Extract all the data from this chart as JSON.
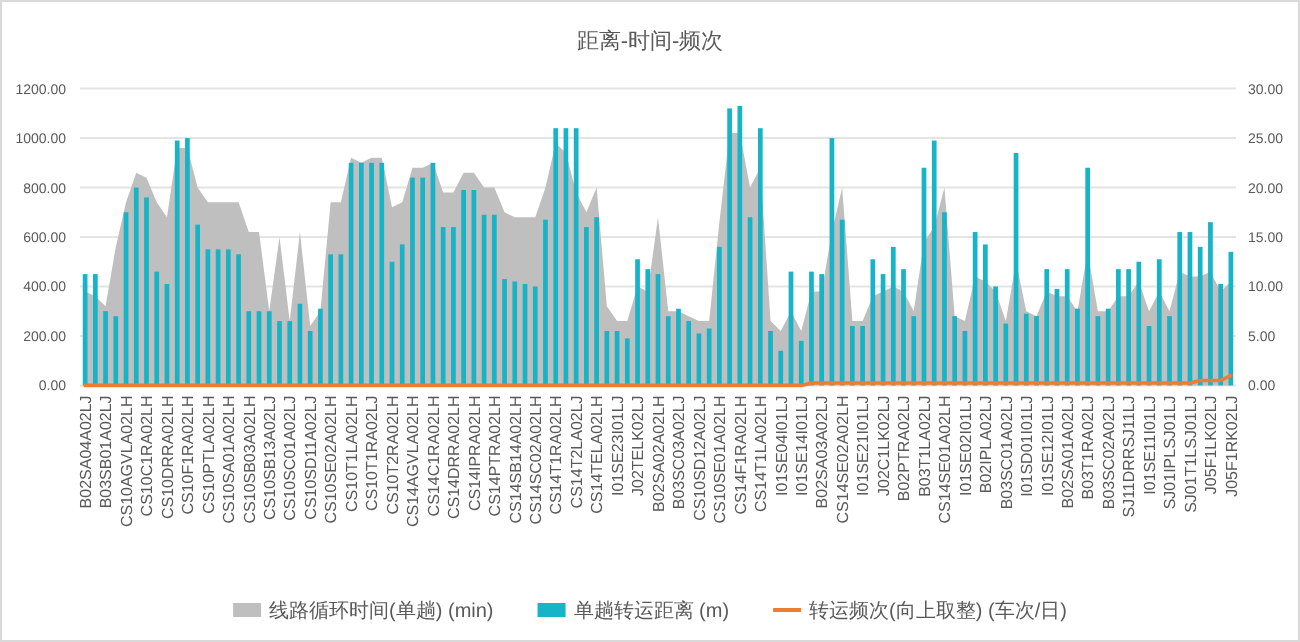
{
  "chart_data": {
    "type": "bar",
    "title": "距离-时间-频次",
    "categories": [
      "B02SA04A02LJ",
      null,
      "B03SB01A02LJ",
      null,
      "CS10AGVLA02LH",
      null,
      "CS10C1RA02LH",
      null,
      "CS10DRRA02LH",
      null,
      "CS10F1RA02LH",
      null,
      "CS10PTLA02LH",
      null,
      "CS10SA01A02LH",
      null,
      "CS10SB03A02LH",
      null,
      "CS10SB13A02LJ",
      null,
      "CS10SC01A02LJ",
      null,
      "CS10SD11A02LJ",
      null,
      "CS10SE02A02LH",
      null,
      "CS10T1LA02LH",
      null,
      "CS10T1RA02LJ",
      null,
      "CS10T2RA02LH",
      null,
      "CS14AGVLA02LH",
      null,
      "CS14C1RA02LH",
      null,
      "CS14DRRA02LH",
      null,
      "CS14IPRA02LH",
      null,
      "CS14PTRA02LH",
      null,
      "CS14SB14A02LH",
      null,
      "CS14SC02A02LH",
      null,
      "CS14T1RA02LH",
      null,
      "CS14T2LA02LJ",
      null,
      "CS14TELA02LH",
      null,
      "I01SE23I01LJ",
      null,
      "J02TELK02LJ",
      null,
      "B02SA02A02LH",
      null,
      "B03SC03A02LJ",
      null,
      "CS10SD12A02LJ",
      null,
      "CS10SE01A02LH",
      null,
      "CS14F1RA02LH",
      null,
      "CS14T1LA02LH",
      null,
      "I01SE04I01LJ",
      null,
      "I01SE14I01LJ",
      null,
      "B02SA03A02LJ",
      null,
      "CS14SE02A02LH",
      null,
      "I01SE21I01LJ",
      null,
      "J02C1LK02LJ",
      null,
      "B02PTRA02LJ",
      null,
      "B03T1LA02LJ",
      null,
      "CS14SE01A02LH",
      null,
      "I01SE02I01LJ",
      null,
      "B02IPLA02LJ",
      null,
      "B03SC01A02LJ",
      null,
      "I01SD01I01LJ",
      null,
      "I01SE12I01LJ",
      null,
      "B02SA01A02LJ",
      null,
      "B03T1RA02LJ",
      null,
      "B03SC02A02LJ",
      null,
      "SJ11DRRSJ11LJ",
      null,
      "I01SE11I01LJ",
      null,
      "SJ01IPLSJ01LJ",
      null,
      "SJ01T1LSJ01LJ",
      null,
      "J05F1LK02LJ",
      null,
      "J05F1RK02LJ"
    ],
    "series": [
      {
        "name": "线路循环时间(单趟) (min)",
        "type": "area",
        "axis": "y2",
        "color": "#bfbfbf",
        "values": [
          9.5,
          9,
          8,
          14,
          18.5,
          21.5,
          21,
          18.5,
          17,
          24,
          24,
          20,
          18.5,
          18.5,
          18.5,
          18.5,
          15.5,
          15.5,
          7.5,
          15,
          6.5,
          15.5,
          6,
          7.5,
          18.5,
          18.5,
          23,
          22.5,
          23,
          23,
          18,
          18.5,
          22,
          22,
          22.5,
          19.5,
          19.5,
          21.5,
          21.5,
          20,
          20,
          17.5,
          17,
          17,
          17,
          20,
          24.5,
          23.5,
          19.5,
          17.5,
          20,
          8,
          6.5,
          6.5,
          10,
          9.5,
          17,
          7.5,
          7.5,
          7,
          6.5,
          6.5,
          16.5,
          25.5,
          25.5,
          20,
          22,
          6.5,
          5.5,
          7.5,
          5.5,
          9.5,
          9.5,
          15.5,
          20,
          6.5,
          6.5,
          9,
          9.5,
          10,
          9.5,
          7.5,
          14.5,
          16,
          20,
          7,
          6.5,
          11,
          10.5,
          9.5,
          6.5,
          12.5,
          7.5,
          7,
          9.5,
          9,
          9,
          7.5,
          13.5,
          7.5,
          7.5,
          9,
          9,
          10.5,
          7.5,
          9.5,
          7.5,
          11.5,
          11,
          11,
          11.5,
          9.5,
          10.5
        ]
      },
      {
        "name": "单趟转运距离 (m)",
        "color": "#17b3c7",
        "values": [
          450,
          450,
          300,
          280,
          700,
          800,
          760,
          460,
          410,
          990,
          1000,
          650,
          550,
          550,
          550,
          530,
          300,
          300,
          300,
          260,
          260,
          330,
          220,
          310,
          530,
          530,
          900,
          900,
          900,
          900,
          500,
          570,
          840,
          840,
          900,
          640,
          640,
          790,
          790,
          690,
          690,
          430,
          420,
          410,
          400,
          670,
          1040,
          1040,
          1040,
          640,
          680,
          220,
          220,
          190,
          510,
          470,
          450,
          280,
          310,
          260,
          210,
          230,
          560,
          1120,
          1130,
          680,
          1040,
          220,
          140,
          460,
          180,
          460,
          450,
          1000,
          670,
          240,
          240,
          510,
          450,
          560,
          470,
          280,
          880,
          990,
          700,
          280,
          220,
          620,
          570,
          400,
          250,
          940,
          290,
          280,
          470,
          390,
          470,
          310,
          880,
          280,
          310,
          470,
          470,
          500,
          240,
          510,
          280,
          620,
          620,
          560,
          660,
          410,
          540
        ]
      },
      {
        "name": "转运频次(向上取整) (车次/日)",
        "type": "line",
        "color": "#ed7d31",
        "values": [
          0,
          0,
          0,
          0,
          0,
          0,
          0,
          0,
          0,
          0,
          0,
          0,
          0,
          0,
          0,
          0,
          0,
          0,
          0,
          0,
          0,
          0,
          0,
          0,
          0,
          0,
          0,
          0,
          0,
          0,
          0,
          0,
          0,
          0,
          0,
          0,
          0,
          0,
          0,
          0,
          0,
          0,
          0,
          0,
          0,
          0,
          0,
          0,
          0,
          0,
          0,
          0,
          0,
          0,
          0,
          0,
          0,
          0,
          0,
          0,
          0,
          0,
          0,
          0,
          0,
          0,
          0,
          0,
          0,
          0,
          0,
          10,
          10,
          10,
          10,
          10,
          10,
          10,
          10,
          10,
          10,
          10,
          10,
          10,
          10,
          10,
          10,
          10,
          10,
          10,
          10,
          10,
          10,
          10,
          10,
          10,
          10,
          10,
          10,
          10,
          10,
          10,
          10,
          10,
          10,
          10,
          10,
          10,
          10,
          20,
          20,
          20,
          40
        ]
      }
    ],
    "ylim": [
      0,
      1200
    ],
    "yticks": [
      {
        "value": 0,
        "label": "0.00"
      },
      {
        "value": 200,
        "label": "200.00"
      },
      {
        "value": 400,
        "label": "400.00"
      },
      {
        "value": 600,
        "label": "600.00"
      },
      {
        "value": 800,
        "label": "800.00"
      },
      {
        "value": 1000,
        "label": "1000.00"
      },
      {
        "value": 1200,
        "label": "1200.00"
      }
    ],
    "y2lim": [
      0,
      30
    ],
    "y2ticks": [
      {
        "value": 0,
        "label": "0.00"
      },
      {
        "value": 5,
        "label": "5.00"
      },
      {
        "value": 10,
        "label": "10.00"
      },
      {
        "value": 15,
        "label": "15.00"
      },
      {
        "value": 20,
        "label": "20.00"
      },
      {
        "value": 25,
        "label": "25.00"
      },
      {
        "value": 30,
        "label": "30.00"
      }
    ],
    "grid": "y",
    "legend": "bottom"
  }
}
